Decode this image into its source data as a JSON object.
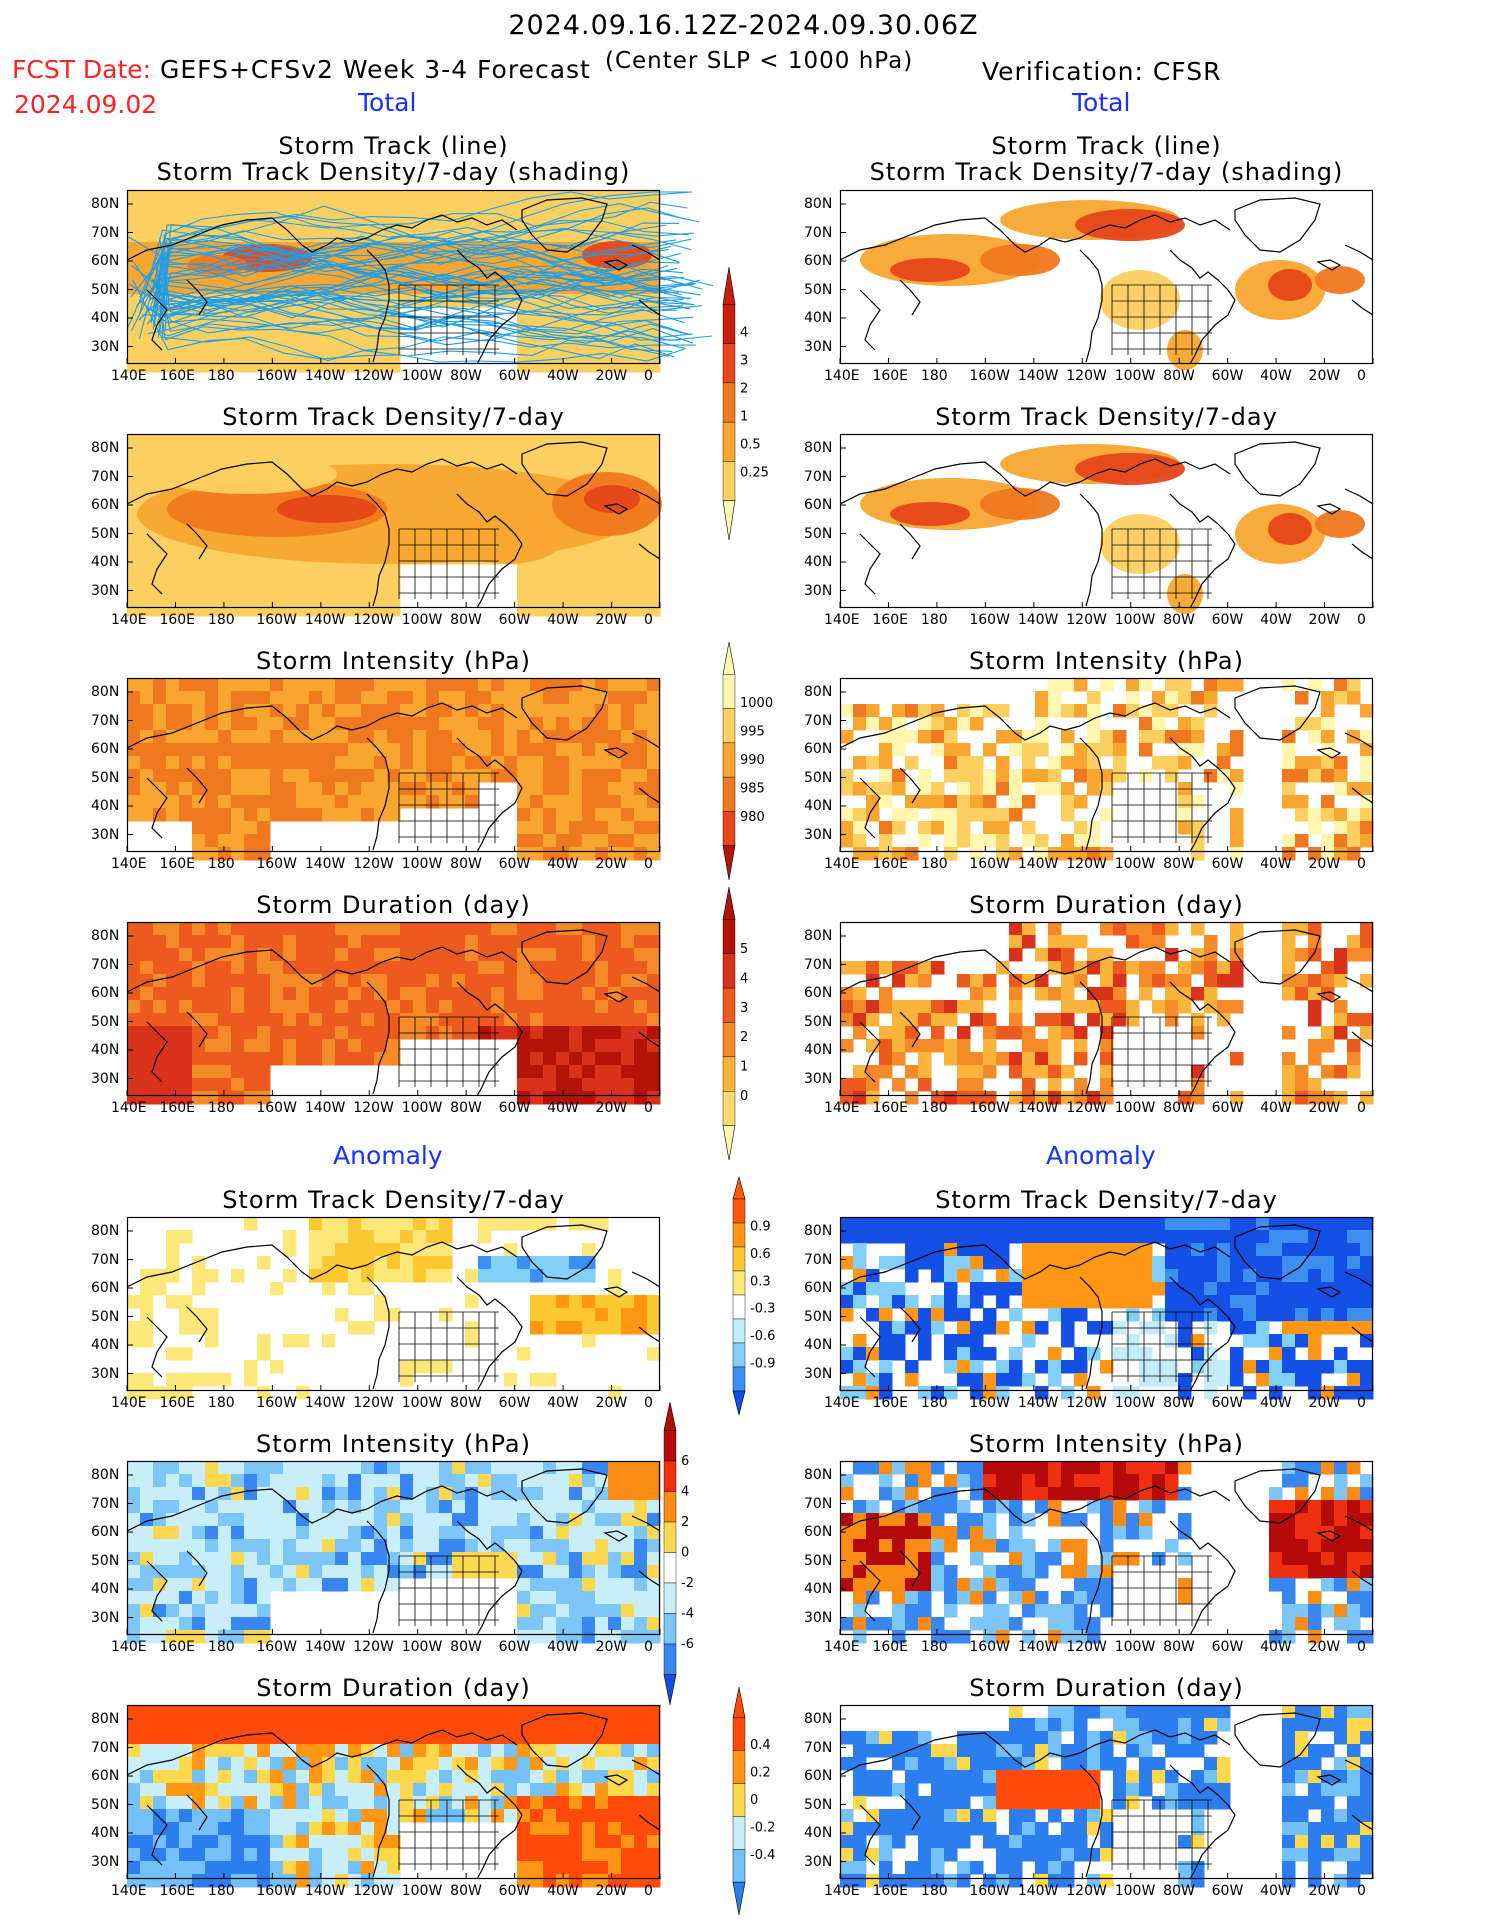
{
  "header": {
    "period": "2024.09.16.12Z-2024.09.30.06Z",
    "fcst_date_label": "FCST Date:",
    "fcst_date": "2024.09.02",
    "model_title": "GEFS+CFSv2 Week 3-4 Forecast",
    "criterion": "(Center SLP < 1000 hPa)",
    "verification": "Verification: CFSR"
  },
  "sections": {
    "total_left": "Total",
    "total_right": "Total",
    "anomaly_left": "Anomaly",
    "anomaly_right": "Anomaly"
  },
  "panel_titles": {
    "track_line": "Storm Track (line)",
    "track_shading": "Storm Track Density/7-day (shading)",
    "density": "Storm Track Density/7-day",
    "intensity": "Storm Intensity (hPa)",
    "duration": "Storm Duration (day)"
  },
  "axes": {
    "lat_labels": [
      "80N",
      "70N",
      "60N",
      "50N",
      "40N",
      "30N"
    ],
    "lon_labels": [
      "140E",
      "160E",
      "180",
      "160W",
      "140W",
      "120W",
      "100W",
      "80W",
      "60W",
      "40W",
      "20W",
      "0"
    ]
  },
  "colorbars": {
    "density_total": {
      "labels": [
        "4",
        "3",
        "2",
        "1",
        "0.5",
        "0.25"
      ],
      "colors": [
        "#c81e0a",
        "#e6461a",
        "#f0781e",
        "#f8a630",
        "#fcd060",
        "#fff6b0"
      ]
    },
    "intensity_total": {
      "labels": [
        "1000",
        "995",
        "990",
        "985",
        "980"
      ],
      "colors": [
        "#fff6b0",
        "#fcd060",
        "#f8a630",
        "#f0781e",
        "#e6461a",
        "#b41408"
      ]
    },
    "duration_total": {
      "labels": [
        "5",
        "4",
        "3",
        "2",
        "1",
        "0"
      ],
      "colors": [
        "#b41408",
        "#d8321a",
        "#ec5a1e",
        "#f48a28",
        "#fab43c",
        "#fcd870",
        "#fff6b0"
      ]
    },
    "density_anom": {
      "labels": [
        "0.9",
        "0.6",
        "0.3",
        "-0.3",
        "-0.6",
        "-0.9"
      ],
      "colors": [
        "#ff5a0a",
        "#ff9614",
        "#fcc832",
        "#fce878",
        "#ffffff",
        "#c4ecfa",
        "#82d0f8",
        "#3c8ef0",
        "#1450e6"
      ]
    },
    "intensity_anom": {
      "labels": [
        "6",
        "4",
        "2",
        "0",
        "-2",
        "-4",
        "-6"
      ],
      "colors": [
        "#b40a0a",
        "#ee3010",
        "#f88c14",
        "#fcd850",
        "#ffffff",
        "#c8eefa",
        "#7cc6f8",
        "#3886f0",
        "#1450e0"
      ]
    },
    "duration_anom": {
      "labels": [
        "0.4",
        "0.2",
        "0",
        "-0.2",
        "-0.4"
      ],
      "colors": [
        "#ff4a0a",
        "#ff9614",
        "#fcd84a",
        "#c8eefa",
        "#74c0f8",
        "#2c7eee"
      ]
    }
  },
  "map_colors": {
    "ocean": "#ffffff",
    "coast": "#000000",
    "track_line": "#1e9ee8"
  }
}
